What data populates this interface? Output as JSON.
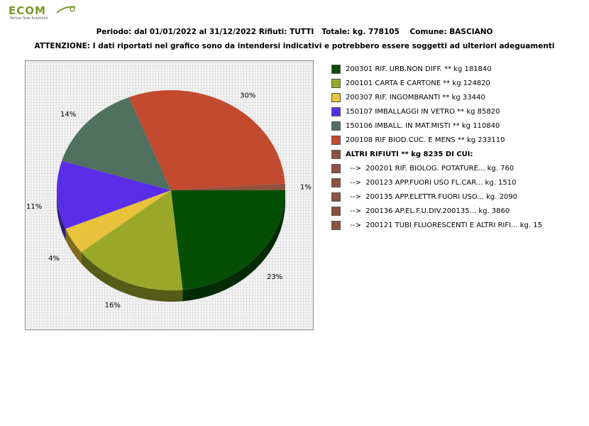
{
  "logo": {
    "text": "ECOM",
    "sub": "Server Side Solutions",
    "color": "#7a9a2a"
  },
  "header": {
    "line1": "Periodo: dal 01/01/2022 al 31/12/2022 Rifiuti: TUTTI   Totale: kg. 778105    Comune: BASCIANO",
    "line2": "ATTENZIONE: I dati riportati nel grafico sono da intendersi indicativi e potrebbero essere soggetti ad ulteriori adeguamenti"
  },
  "chart_data": {
    "type": "pie",
    "title": "",
    "slices": [
      {
        "label": "200301 RIF. URB.NON DIFF. ** kg 181840",
        "value": 181840,
        "percent": "23%",
        "color": "#054f05"
      },
      {
        "label": "200101 CARTA E CARTONE ** kg 124820",
        "value": 124820,
        "percent": "16%",
        "color": "#9aa82a"
      },
      {
        "label": "200307 RIF. INGOMBRANTI ** kg 33440",
        "value": 33440,
        "percent": "4%",
        "color": "#e8c23a"
      },
      {
        "label": "150107 IMBALLAGGI IN VETRO ** kg 85820",
        "value": 85820,
        "percent": "11%",
        "color": "#5a2de8"
      },
      {
        "label": "150106 IMBALL. IN MAT.MISTI ** kg 110840",
        "value": 110840,
        "percent": "14%",
        "color": "#507060"
      },
      {
        "label": "200108 RIF BIOD.CUC. E MENS ** kg 233110",
        "value": 233110,
        "percent": "30%",
        "color": "#c24a2e"
      },
      {
        "label": "ALTRI RIFIUTI ** kg 8235 DI CUI:",
        "value": 8235,
        "percent": "1%",
        "color": "#8e5240"
      }
    ],
    "sub_items": [
      {
        "label": "  -->  200201 RIF. BIOLOG. POTATURE... kg. 760",
        "value": 760,
        "color": "#8e5240"
      },
      {
        "label": "  -->  200123 APP.FUORI USO FL.CAR... kg. 1510",
        "value": 1510,
        "color": "#8e5240"
      },
      {
        "label": "  -->  200135 APP.ELETTR.FUORI USO... kg. 2090",
        "value": 2090,
        "color": "#8e5240"
      },
      {
        "label": "  -->  200136 AP.EL.F.U.DIV.200135... kg. 3860",
        "value": 3860,
        "color": "#8e5240"
      },
      {
        "label": "  -->  200121 TUBI FLUORESCENTI E ALTRI RIFI... kg. 15",
        "value": 15,
        "color": "#8e5240"
      }
    ],
    "legend_position": "right"
  }
}
